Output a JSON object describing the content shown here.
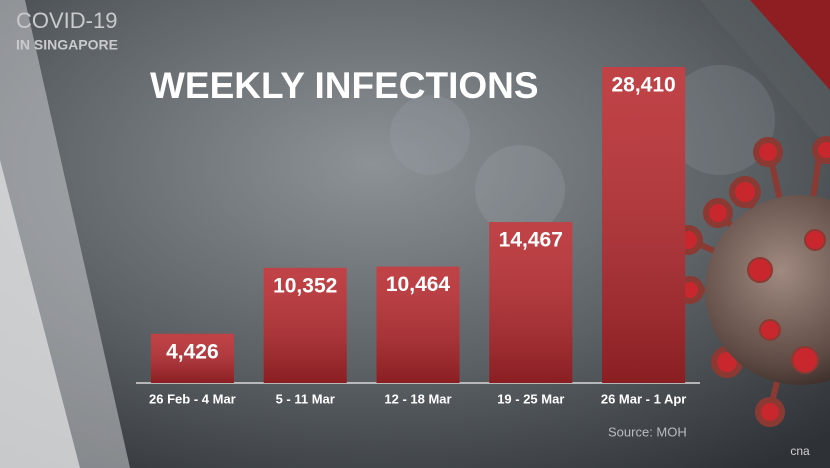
{
  "header": {
    "line1": "COVID-19",
    "line2": "IN SINGAPORE"
  },
  "logo": "cna",
  "chart_data": {
    "type": "bar",
    "title": "WEEKLY INFECTIONS",
    "categories": [
      "26 Feb - 4 Mar",
      "5 - 11 Mar",
      "12 - 18 Mar",
      "19 - 25 Mar",
      "26 Mar - 1 Apr"
    ],
    "values": [
      4426,
      10352,
      10464,
      14467,
      28410
    ],
    "value_labels": [
      "4,426",
      "10,352",
      "10,464",
      "14,467",
      "28,410"
    ],
    "color": "#b7282d",
    "source": "Source: MOH"
  }
}
